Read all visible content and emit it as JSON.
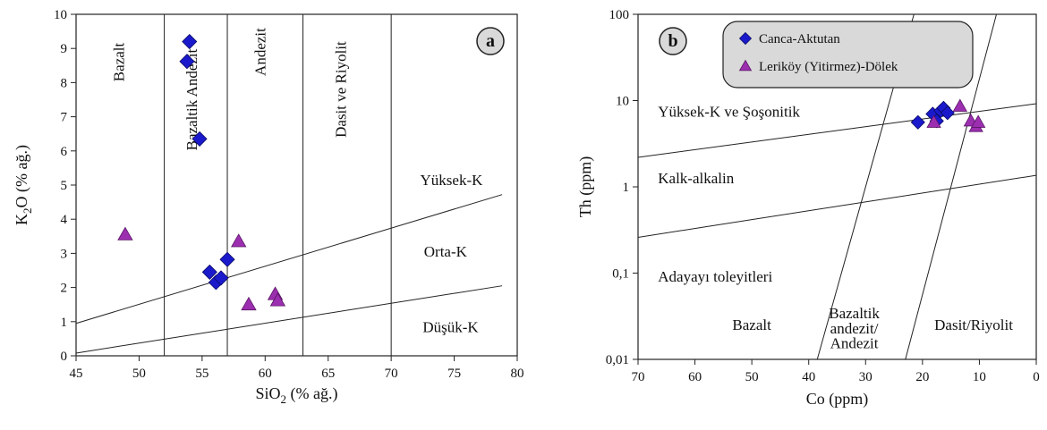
{
  "chart_data": [
    {
      "type": "scatter",
      "panel_label": "a",
      "xlabel": {
        "main": "SiO",
        "sub": "2",
        "unit": " (% ağ.)"
      },
      "ylabel": {
        "main": "K",
        "sub": "2",
        "rest": "O (% ağ.)"
      },
      "xlim": [
        45,
        80
      ],
      "ylim": [
        0,
        10
      ],
      "x_ticks": [
        45,
        50,
        55,
        60,
        65,
        70,
        75,
        80
      ],
      "y_ticks": [
        0,
        1,
        2,
        3,
        4,
        5,
        6,
        7,
        8,
        9,
        10
      ],
      "grid": false,
      "series": [
        {
          "marker": "diamond",
          "color": "#1a1acc",
          "points": [
            [
              54.0,
              9.2
            ],
            [
              53.8,
              8.62
            ],
            [
              54.8,
              6.35
            ],
            [
              55.6,
              2.45
            ],
            [
              56.1,
              2.15
            ],
            [
              56.5,
              2.28
            ],
            [
              57.0,
              2.82
            ]
          ]
        },
        {
          "marker": "triangle",
          "color": "#9c2fb0",
          "points": [
            [
              48.9,
              3.55
            ],
            [
              57.9,
              3.35
            ],
            [
              58.7,
              1.5
            ],
            [
              60.8,
              1.8
            ],
            [
              61.0,
              1.62
            ]
          ]
        }
      ],
      "vertical_boundaries": [
        52,
        57,
        63,
        70
      ],
      "boundary_lines": [
        {
          "from": [
            45,
            0.95
          ],
          "to": [
            78.8,
            4.72
          ]
        },
        {
          "from": [
            45,
            0.08
          ],
          "to": [
            78.8,
            2.05
          ]
        }
      ],
      "field_labels": [
        {
          "text": "Bazalt",
          "x": 48.8,
          "y": 8.6,
          "rotate": true
        },
        {
          "text": "Bazaltik Andezit",
          "x": 54.6,
          "y": 7.5,
          "rotate": true
        },
        {
          "text": "Andezit",
          "x": 60.0,
          "y": 8.9,
          "rotate": true
        },
        {
          "text": "Dasit ve Riyolit",
          "x": 66.4,
          "y": 7.8,
          "rotate": true
        },
        {
          "text": "Yüksek-K",
          "x": 72.3,
          "y": 5.0,
          "rotate": false
        },
        {
          "text": "Orta-K",
          "x": 72.6,
          "y": 2.9,
          "rotate": false
        },
        {
          "text": "Düşük-K",
          "x": 72.5,
          "y": 0.7,
          "rotate": false
        }
      ]
    },
    {
      "type": "scatter",
      "panel_label": "b",
      "xlabel": "Co (ppm)",
      "ylabel": "Th (ppm)",
      "xlim": [
        70,
        0
      ],
      "ylim": [
        0.01,
        100
      ],
      "y_scale": "log",
      "x_ticks": [
        70,
        60,
        50,
        40,
        30,
        20,
        10,
        0
      ],
      "y_ticks": [
        {
          "value": 0.01,
          "label": "0,01"
        },
        {
          "value": 0.1,
          "label": "0,1"
        },
        {
          "value": 1,
          "label": "1"
        },
        {
          "value": 10,
          "label": "10"
        },
        {
          "value": 100,
          "label": "100"
        }
      ],
      "grid": false,
      "legend": {
        "position": "top-center",
        "entries": [
          {
            "label": "Canca-Aktutan",
            "marker": "diamond",
            "color": "#1a1acc"
          },
          {
            "label": "Leriköy (Yitirmez)-Dölek",
            "marker": "triangle",
            "color": "#9c2fb0"
          }
        ]
      },
      "series": [
        {
          "name": "Canca-Aktutan",
          "marker": "diamond",
          "color": "#1a1acc",
          "points": [
            [
              20.8,
              5.6
            ],
            [
              18.2,
              7.0
            ],
            [
              17.5,
              5.8
            ],
            [
              16.8,
              7.6
            ],
            [
              16.3,
              8.2
            ],
            [
              15.6,
              7.2
            ]
          ]
        },
        {
          "name": "Leriköy (Yitirmez)-Dölek",
          "marker": "triangle",
          "color": "#9c2fb0",
          "points": [
            [
              18.0,
              5.6
            ],
            [
              13.4,
              8.6
            ],
            [
              11.5,
              5.8
            ],
            [
              10.6,
              5.0
            ],
            [
              10.2,
              5.6
            ]
          ]
        }
      ],
      "boundary_lines": [
        {
          "from": [
            70,
            2.2
          ],
          "to": [
            0,
            9.2
          ]
        },
        {
          "from": [
            70,
            0.26
          ],
          "to": [
            0,
            1.36
          ]
        },
        {
          "from": [
            38.5,
            0.01
          ],
          "to": [
            21.5,
            100
          ]
        },
        {
          "from": [
            23.0,
            0.01
          ],
          "to": [
            7.0,
            100
          ]
        }
      ],
      "field_labels": [
        {
          "text": "Yüksek-K ve Şoşonitik",
          "x": 66.5,
          "y": 6.5
        },
        {
          "text": "Kalk-alkalin",
          "x": 66.5,
          "y": 1.1
        },
        {
          "text": "Adayayı toleyitleri",
          "x": 66.5,
          "y": 0.08
        },
        {
          "text": "Bazalt",
          "x": 50.0,
          "y": 0.022
        },
        {
          "text": "Bazaltik",
          "x": 32.0,
          "y": 0.03
        },
        {
          "text": "andezit/",
          "x": 32.0,
          "y": 0.02
        },
        {
          "text": "Andezit",
          "x": 32.0,
          "y": 0.0135
        },
        {
          "text": "Dasit/Riyolit",
          "x": 11.0,
          "y": 0.022
        }
      ]
    }
  ]
}
